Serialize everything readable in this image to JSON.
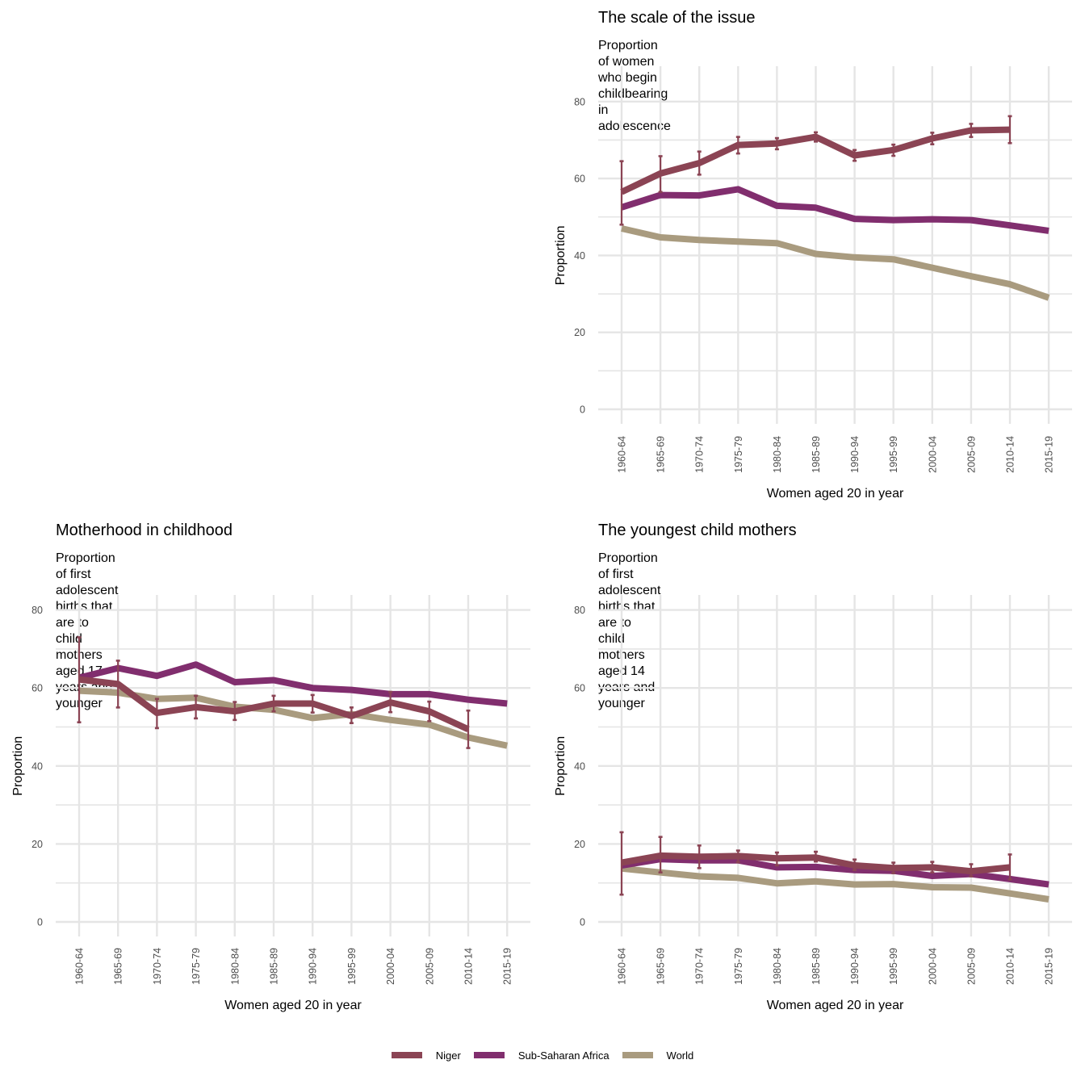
{
  "legend": {
    "items": [
      {
        "name": "Niger",
        "color": "#8B4454"
      },
      {
        "name": "Sub-Saharan Africa",
        "color": "#812E6E"
      },
      {
        "name": "World",
        "color": "#A99B7F"
      }
    ]
  },
  "chart_data": [
    {
      "id": "scale",
      "type": "line",
      "title": "The scale of the issue",
      "subtitle": "Proportion of women who begin childbearing in adolescence",
      "xlabel": "Women aged 20 in year",
      "ylabel": "Proportion",
      "ylim": [
        0,
        85
      ],
      "yticks": [
        0,
        20,
        40,
        60,
        80
      ],
      "grid": true,
      "categories": [
        "1960-64",
        "1965-69",
        "1970-74",
        "1975-79",
        "1980-84",
        "1985-89",
        "1990-94",
        "1995-99",
        "2000-04",
        "2005-09",
        "2010-14",
        "2015-19"
      ],
      "series": [
        {
          "name": "World",
          "values": [
            47.0,
            44.7,
            44.0,
            43.6,
            43.2,
            40.4,
            39.5,
            39.0,
            36.8,
            34.6,
            32.5,
            29.0
          ]
        },
        {
          "name": "Sub-Saharan Africa",
          "values": [
            52.5,
            55.7,
            55.6,
            57.2,
            52.9,
            52.4,
            49.5,
            49.2,
            49.4,
            49.2,
            47.8,
            46.4
          ]
        },
        {
          "name": "Niger",
          "values": [
            56.5,
            61.3,
            64.0,
            68.7,
            69.1,
            70.8,
            66.0,
            67.4,
            70.4,
            72.5,
            72.7,
            null
          ],
          "error_low": [
            48.0,
            56.5,
            61.0,
            66.5,
            67.6,
            69.6,
            64.6,
            65.9,
            68.9,
            70.8,
            69.2,
            null
          ],
          "error_high": [
            64.5,
            65.8,
            67.0,
            70.8,
            70.5,
            72.0,
            67.4,
            68.8,
            71.9,
            74.2,
            76.2,
            null
          ]
        }
      ]
    },
    {
      "id": "childhood",
      "type": "line",
      "title": "Motherhood in childhood",
      "subtitle": "Proportion of first adolescent births that are to child mothers\naged 17 years and younger",
      "xlabel": "Women aged 20 in year",
      "ylabel": "Proportion",
      "ylim": [
        0,
        83
      ],
      "yticks": [
        0,
        20,
        40,
        60,
        80
      ],
      "grid": true,
      "categories": [
        "1960-64",
        "1965-69",
        "1970-74",
        "1975-79",
        "1980-84",
        "1985-89",
        "1990-94",
        "1995-99",
        "2000-04",
        "2005-09",
        "2010-14",
        "2015-19"
      ],
      "series": [
        {
          "name": "World",
          "values": [
            59.3,
            58.8,
            57.2,
            57.5,
            55.2,
            54.4,
            52.3,
            53.3,
            51.8,
            50.6,
            47.3,
            45.2
          ]
        },
        {
          "name": "Sub-Saharan Africa",
          "values": [
            62.6,
            65.1,
            63.1,
            66.0,
            61.5,
            62.0,
            60.0,
            59.5,
            58.4,
            58.4,
            57.0,
            56.0
          ]
        },
        {
          "name": "Niger",
          "values": [
            62.2,
            61.0,
            53.6,
            55.1,
            54.0,
            56.0,
            56.0,
            52.8,
            56.3,
            54.0,
            49.4,
            null
          ],
          "error_low": [
            51.2,
            55.0,
            49.7,
            52.2,
            51.8,
            54.0,
            53.7,
            51.0,
            53.8,
            51.5,
            44.6,
            null
          ],
          "error_high": [
            73.0,
            67.0,
            57.2,
            58.0,
            56.4,
            58.0,
            58.2,
            55.0,
            59.0,
            56.5,
            54.2,
            null
          ]
        }
      ]
    },
    {
      "id": "youngest",
      "type": "line",
      "title": "The youngest child mothers",
      "subtitle": "Proportion of first adolescent births that are to child mothers\naged 14 years and younger",
      "xlabel": "Women aged 20 in year",
      "ylabel": "Proportion",
      "ylim": [
        0,
        83
      ],
      "yticks": [
        0,
        20,
        40,
        60,
        80
      ],
      "grid": true,
      "categories": [
        "1960-64",
        "1965-69",
        "1970-74",
        "1975-79",
        "1980-84",
        "1985-89",
        "1990-94",
        "1995-99",
        "2000-04",
        "2005-09",
        "2010-14",
        "2015-19"
      ],
      "series": [
        {
          "name": "World",
          "values": [
            13.7,
            12.7,
            11.7,
            11.3,
            9.9,
            10.4,
            9.6,
            9.7,
            8.9,
            8.8,
            7.3,
            5.8
          ]
        },
        {
          "name": "Sub-Saharan Africa",
          "values": [
            14.5,
            16.1,
            15.8,
            15.8,
            14.0,
            14.1,
            13.3,
            13.1,
            11.8,
            12.3,
            11.0,
            9.6
          ]
        },
        {
          "name": "Niger",
          "values": [
            15.2,
            17.0,
            16.7,
            16.9,
            16.3,
            16.5,
            14.5,
            13.8,
            14.0,
            13.0,
            14.0,
            null
          ],
          "error_low": [
            7.0,
            12.7,
            13.8,
            15.3,
            14.5,
            15.5,
            13.3,
            12.5,
            12.7,
            11.7,
            10.9,
            null
          ],
          "error_high": [
            23.0,
            21.8,
            19.6,
            18.3,
            17.8,
            18.0,
            16.0,
            15.2,
            15.4,
            14.8,
            17.3,
            null
          ]
        }
      ]
    }
  ]
}
